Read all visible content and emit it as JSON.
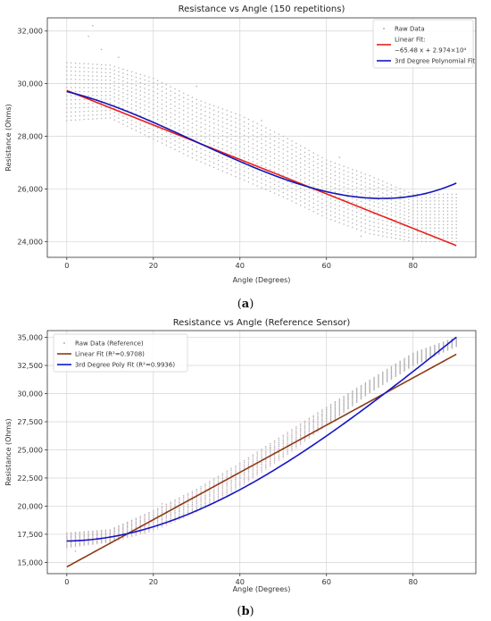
{
  "chart_data": [
    {
      "type": "scatter+line",
      "title": "Resistance vs Angle (150 repetitions)",
      "xlabel": "Angle (Degrees)",
      "ylabel": "Resistance (Ohms)",
      "xlim": [
        -4.5,
        94.5
      ],
      "ylim": [
        23400,
        32500
      ],
      "xticks": [
        0,
        20,
        40,
        60,
        80
      ],
      "yticks": [
        24000,
        26000,
        28000,
        30000,
        32000
      ],
      "ytick_labels": [
        "24,000",
        "26,000",
        "28,000",
        "30,000",
        "32,000"
      ],
      "grid": true,
      "legend_position": "top-right",
      "caption": "a",
      "scatter": {
        "name": "Raw Data",
        "color": "#b3b3b3",
        "x_start": 0,
        "x_end": 90,
        "x_step": 1,
        "band": {
          "x": [
            0,
            10,
            20,
            30,
            40,
            50,
            60,
            70,
            80,
            90
          ],
          "low": [
            28600,
            28700,
            27900,
            27100,
            26400,
            25700,
            24900,
            24300,
            24000,
            24000
          ],
          "high": [
            30800,
            30700,
            30200,
            29400,
            28800,
            28000,
            27100,
            26500,
            25800,
            25800
          ]
        },
        "outliers": [
          [
            5,
            31800
          ],
          [
            6,
            32200
          ],
          [
            8,
            31300
          ],
          [
            12,
            31000
          ],
          [
            30,
            29900
          ],
          [
            45,
            28600
          ],
          [
            63,
            27200
          ],
          [
            68,
            24200
          ]
        ]
      },
      "series": [
        {
          "name": "Linear Fit: −65.48 x + 2.974×10⁴",
          "legend_lines": [
            "Linear Fit:",
            "−65.48 x + 2.974×10⁴"
          ],
          "type": "linear",
          "color": "#e8201e",
          "slope": -65.48,
          "intercept": 29740,
          "x_range": [
            0,
            90
          ]
        },
        {
          "name": "3rd Degree Polynomial Fit",
          "legend_lines": [
            "3rd Degree Polynomial Fit"
          ],
          "type": "cubic",
          "color": "#1515b8",
          "coefficients": [
            29700,
            -40,
            -1.2,
            0.0135
          ],
          "x_range": [
            0,
            90
          ]
        }
      ]
    },
    {
      "type": "scatter+line",
      "title": "Resistance vs Angle (Reference Sensor)",
      "xlabel": "Angle (Degrees)",
      "ylabel": "Resistance (Ohms)",
      "xlim": [
        -4.5,
        94.5
      ],
      "ylim": [
        14000,
        35600
      ],
      "xticks": [
        0,
        20,
        40,
        60,
        80
      ],
      "yticks": [
        15000,
        17500,
        20000,
        22500,
        25000,
        27500,
        30000,
        32500,
        35000
      ],
      "ytick_labels": [
        "15,000",
        "17,500",
        "20,000",
        "22,500",
        "25,000",
        "27,500",
        "30,000",
        "32,500",
        "35,000"
      ],
      "grid": true,
      "legend_position": "top-left",
      "caption": "b",
      "scatter": {
        "name": "Raw Data (Reference)",
        "color": "#b3b3b3",
        "pink_color": "#f3b6d2",
        "x_start": 0,
        "x_end": 90,
        "x_step": 1,
        "band": {
          "x": [
            0,
            10,
            20,
            30,
            40,
            50,
            60,
            70,
            80,
            90
          ],
          "low": [
            16300,
            16800,
            17800,
            19500,
            21700,
            24300,
            27200,
            30100,
            32500,
            34200
          ],
          "high": [
            17600,
            17900,
            19600,
            21500,
            23800,
            26300,
            28800,
            31200,
            33600,
            35000
          ]
        },
        "outliers": [
          [
            2,
            16000
          ],
          [
            14,
            18500
          ],
          [
            22,
            20200
          ],
          [
            47,
            25200
          ]
        ]
      },
      "series": [
        {
          "name": "Linear Fit (R²=0.9708)",
          "legend_lines": [
            "Linear Fit (R²=0.9708)"
          ],
          "type": "linear",
          "color": "#8b3a14",
          "slope": 210,
          "intercept": 14600,
          "x_range": [
            0,
            90
          ]
        },
        {
          "name": "3rd Degree Poly Fit (R²=0.9936)",
          "legend_lines": [
            "3rd Degree Poly Fit (R²=0.9936)"
          ],
          "type": "cubic",
          "color": "#1515c8",
          "coefficients": [
            16900,
            4,
            3.2,
            -0.0112
          ],
          "x_range": [
            0,
            90
          ]
        }
      ]
    }
  ]
}
